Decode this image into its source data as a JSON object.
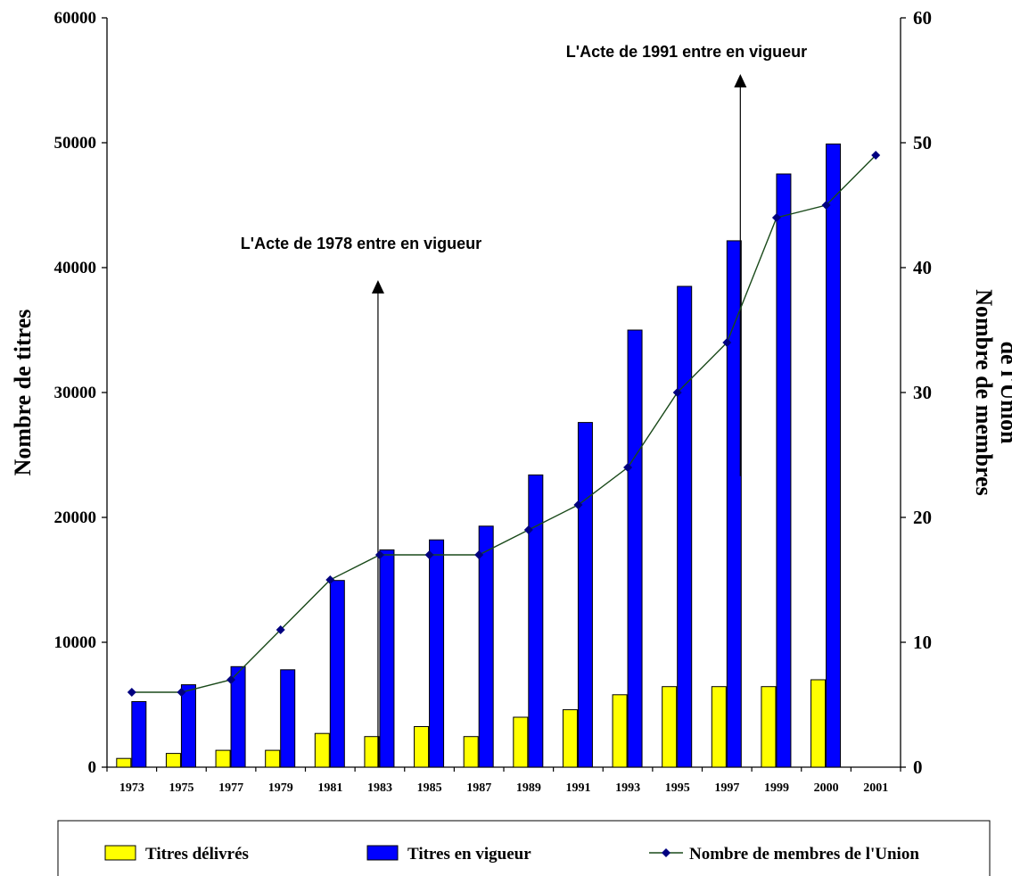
{
  "chart_data": {
    "type": "bar",
    "categories": [
      "1973",
      "1975",
      "1977",
      "1979",
      "1981",
      "1983",
      "1985",
      "1987",
      "1989",
      "1991",
      "1993",
      "1995",
      "1997",
      "1999",
      "2000",
      "2001"
    ],
    "series": [
      {
        "name": "Titres délivrés",
        "axis": "left",
        "kind": "bar",
        "color": "#ffff00",
        "values": [
          700,
          1100,
          1350,
          1350,
          2700,
          2450,
          3250,
          2450,
          4000,
          4600,
          5800,
          6450,
          6450,
          6450,
          7000,
          null
        ]
      },
      {
        "name": "Titres en vigueur",
        "axis": "left",
        "kind": "bar",
        "color": "#0000ff",
        "values": [
          5250,
          6600,
          8050,
          7800,
          14950,
          17400,
          18200,
          19300,
          23400,
          27600,
          35000,
          38500,
          42150,
          47500,
          49900,
          null
        ]
      },
      {
        "name": "Nombre de membres de l'Union",
        "axis": "right",
        "kind": "line",
        "color": "#1a4a1a",
        "marker_color": "#000080",
        "values": [
          6,
          6,
          7,
          11,
          15,
          17,
          17,
          17,
          19,
          21,
          24,
          30,
          34,
          44,
          45,
          49
        ]
      }
    ],
    "ylabel": "Nombre de titres",
    "y2label_lines": [
      "Nombre de membres",
      "de l'Union"
    ],
    "ylim": [
      0,
      60000
    ],
    "yticks": [
      "0",
      "10000",
      "20000",
      "30000",
      "40000",
      "50000",
      "60000"
    ],
    "y2lim": [
      0,
      60
    ],
    "y2ticks": [
      "0",
      "10",
      "20",
      "30",
      "40",
      "50",
      "60"
    ],
    "annotations": [
      {
        "text": "L'Acte de 1978 entre en vigueur",
        "at_category": "1983",
        "arrow_from": 0,
        "arrow_to": 39000
      },
      {
        "text": "L'Acte de 1991 entre en vigueur",
        "at_category": "1997",
        "arrow_from": 23300,
        "arrow_to": 55500
      }
    ],
    "legend": "bottom",
    "grid": false
  }
}
